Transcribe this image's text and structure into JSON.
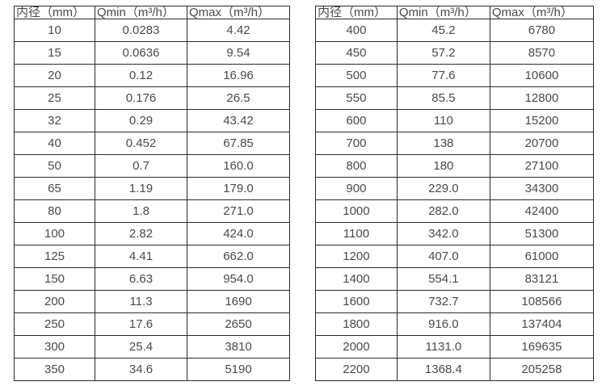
{
  "styles": {
    "background": "#ffffff",
    "border_color": "#2b2b2b",
    "text_color": "#4a4a4a"
  },
  "chart_data": [
    {
      "type": "table",
      "title": "",
      "columns": [
        "内径（mm）",
        "Qmin（m³/h）",
        "Qmax（m³/h）"
      ],
      "rows": [
        [
          "10",
          "0.0283",
          "4.42"
        ],
        [
          "15",
          "0.0636",
          "9.54"
        ],
        [
          "20",
          "0.12",
          "16.96"
        ],
        [
          "25",
          "0.176",
          "26.5"
        ],
        [
          "32",
          "0.29",
          "43.42"
        ],
        [
          "40",
          "0.452",
          "67.85"
        ],
        [
          "50",
          "0.7",
          "160.0"
        ],
        [
          "65",
          "1.19",
          "179.0"
        ],
        [
          "80",
          "1.8",
          "271.0"
        ],
        [
          "100",
          "2.82",
          "424.0"
        ],
        [
          "125",
          "4.41",
          "662.0"
        ],
        [
          "150",
          "6.63",
          "954.0"
        ],
        [
          "200",
          "11.3",
          "1690"
        ],
        [
          "250",
          "17.6",
          "2650"
        ],
        [
          "300",
          "25.4",
          "3810"
        ],
        [
          "350",
          "34.6",
          "5190"
        ]
      ]
    },
    {
      "type": "table",
      "title": "",
      "columns": [
        "内径（mm）",
        "Qmin（m³/h）",
        "Qmax（m³/h）"
      ],
      "rows": [
        [
          "400",
          "45.2",
          "6780"
        ],
        [
          "450",
          "57.2",
          "8570"
        ],
        [
          "500",
          "77.6",
          "10600"
        ],
        [
          "550",
          "85.5",
          "12800"
        ],
        [
          "600",
          "110",
          "15200"
        ],
        [
          "700",
          "138",
          "20700"
        ],
        [
          "800",
          "180",
          "27100"
        ],
        [
          "900",
          "229.0",
          "34300"
        ],
        [
          "1000",
          "282.0",
          "42400"
        ],
        [
          "1100",
          "342.0",
          "51300"
        ],
        [
          "1200",
          "407.0",
          "61000"
        ],
        [
          "1400",
          "554.1",
          "83121"
        ],
        [
          "1600",
          "732.7",
          "108566"
        ],
        [
          "1800",
          "916.0",
          "137404"
        ],
        [
          "2000",
          "1131.0",
          "169635"
        ],
        [
          "2200",
          "1368.4",
          "205258"
        ]
      ]
    }
  ]
}
